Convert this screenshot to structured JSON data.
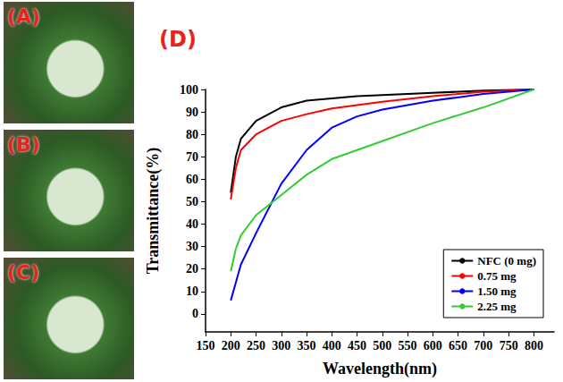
{
  "panel_labels": [
    "(A)",
    "(B)",
    "(C)",
    "(D)"
  ],
  "chart_data": {
    "type": "line",
    "x_label": "Wavelength(nm)",
    "y_label": "Transmittance(%)",
    "x": [
      200,
      210,
      220,
      250,
      300,
      350,
      400,
      450,
      500,
      600,
      700,
      800
    ],
    "series": [
      {
        "name": "NFC (0 mg)",
        "color": "#000000",
        "values": [
          54,
          70,
          78,
          86,
          92,
          95,
          96,
          97,
          97.5,
          98.5,
          99.5,
          100
        ]
      },
      {
        "name": "0.75 mg",
        "color": "#ff0000",
        "values": [
          51,
          65,
          73,
          80,
          86,
          89,
          91.5,
          93,
          94.5,
          97,
          99,
          100
        ]
      },
      {
        "name": "1.50 mg",
        "color": "#0000ff",
        "values": [
          6,
          14,
          22,
          36,
          58,
          73,
          83,
          88,
          91,
          95,
          98,
          100
        ]
      },
      {
        "name": "2.25 mg",
        "color": "#33cc33",
        "values": [
          19,
          29,
          35,
          44,
          53,
          62,
          69,
          73,
          77,
          85,
          92,
          100
        ]
      }
    ],
    "xlim": [
      150,
      840
    ],
    "xticks": [
      150,
      200,
      250,
      300,
      350,
      400,
      450,
      500,
      550,
      600,
      650,
      700,
      750,
      800
    ],
    "ylim": [
      -8,
      100
    ],
    "yticks": [
      0,
      10,
      20,
      30,
      40,
      50,
      60,
      70,
      80,
      90,
      100
    ],
    "grid": false,
    "legend": "lower right"
  }
}
